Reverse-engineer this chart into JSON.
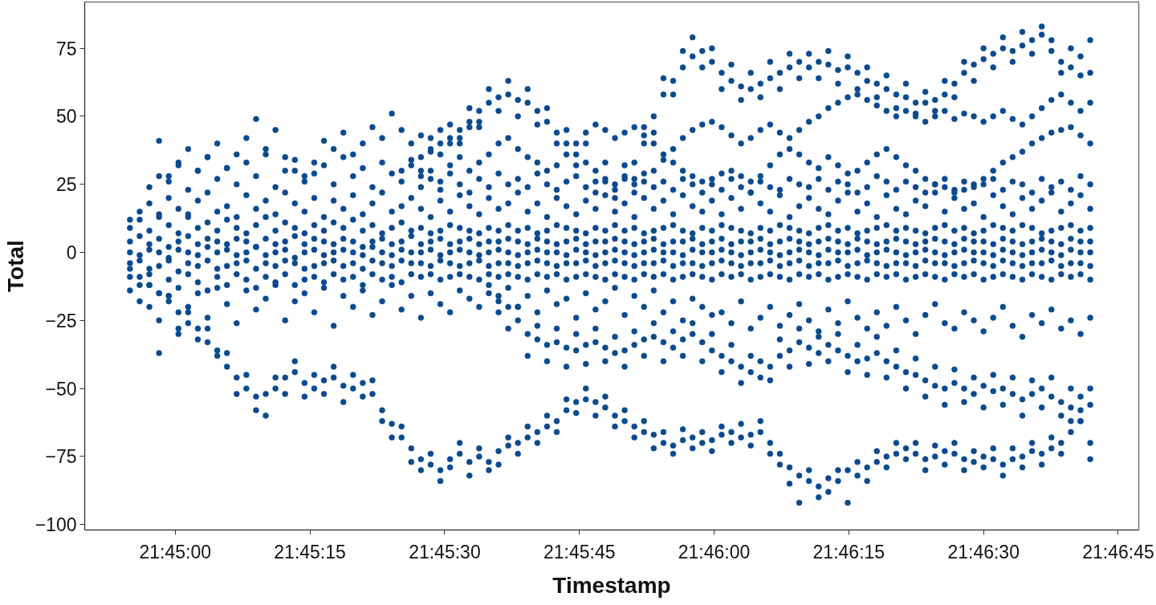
{
  "chart_data": {
    "type": "scatter",
    "xlabel": "Timestamp",
    "ylabel": "Total",
    "marker": "circle",
    "xlim": [
      21.7472,
      21.7798
    ],
    "ylim": [
      -102,
      92
    ],
    "xticks": [
      {
        "value": 21.75,
        "label": "21:45:00"
      },
      {
        "value": 21.7541667,
        "label": "21:45:15"
      },
      {
        "value": 21.7583333,
        "label": "21:45:30"
      },
      {
        "value": 21.7625,
        "label": "21:45:45"
      },
      {
        "value": 21.7666667,
        "label": "21:46:00"
      },
      {
        "value": 21.7708333,
        "label": "21:46:15"
      },
      {
        "value": 21.775,
        "label": "21:46:30"
      },
      {
        "value": 21.7791667,
        "label": "21:46:45"
      }
    ],
    "yticks": [
      -100,
      -75,
      -50,
      -25,
      0,
      25,
      50,
      75
    ],
    "x": [
      21.7486,
      21.7489,
      21.7492,
      21.7495,
      21.7498,
      21.7501,
      21.7504,
      21.7507,
      21.751,
      21.7513,
      21.7516,
      21.7519,
      21.7522,
      21.7525,
      21.7528,
      21.7531,
      21.7534,
      21.7537,
      21.754,
      21.7543,
      21.7546,
      21.7549,
      21.7552,
      21.7555,
      21.7558,
      21.7561,
      21.7564,
      21.7567,
      21.757,
      21.7573,
      21.7576,
      21.7579,
      21.7582,
      21.7585,
      21.7588,
      21.7591,
      21.7594,
      21.7597,
      21.76,
      21.7603,
      21.7606,
      21.7609,
      21.7612,
      21.7615,
      21.7618,
      21.7621,
      21.7624,
      21.7627,
      21.763,
      21.7633,
      21.7636,
      21.7639,
      21.7642,
      21.7645,
      21.7648,
      21.7651,
      21.7654,
      21.7657,
      21.766,
      21.7663,
      21.7666,
      21.7669,
      21.7672,
      21.7675,
      21.7678,
      21.7681,
      21.7684,
      21.7687,
      21.769,
      21.7693,
      21.7696,
      21.7699,
      21.7702,
      21.7705,
      21.7708,
      21.7711,
      21.7714,
      21.7717,
      21.772,
      21.7723,
      21.7726,
      21.7729,
      21.7732,
      21.7735,
      21.7738,
      21.7741,
      21.7744,
      21.7747,
      21.775,
      21.7753,
      21.7756,
      21.7759,
      21.7762,
      21.7765,
      21.7768,
      21.7771,
      21.7774,
      21.7777,
      21.778,
      21.7783
    ],
    "series": [
      {
        "color": "#0a4a8f",
        "values": [
          9,
          12,
          8,
          14,
          10,
          7,
          13,
          9,
          11,
          8,
          12,
          9,
          7,
          10,
          13,
          8,
          11,
          9,
          7,
          10,
          8,
          11,
          9,
          12,
          8,
          10,
          7,
          9,
          11,
          8,
          9,
          7,
          8,
          10,
          9,
          8,
          7,
          9,
          8,
          10,
          8,
          9,
          7,
          8,
          10,
          9,
          8,
          7,
          9,
          8,
          10,
          8,
          9,
          7,
          8,
          9,
          10,
          8,
          7,
          9,
          8,
          10,
          9,
          8,
          7,
          9,
          8,
          10,
          9,
          8,
          7,
          9,
          10,
          8,
          9,
          7,
          8,
          9,
          10,
          8,
          9,
          8,
          7,
          9,
          10,
          8,
          9,
          7,
          8,
          10,
          9,
          8,
          10,
          9,
          7,
          8,
          9,
          10,
          8,
          9
        ]
      },
      {
        "color": "#0a4a8f",
        "values": [
          4,
          6,
          3,
          5,
          2,
          4,
          6,
          3,
          5,
          4,
          3,
          5,
          4,
          2,
          5,
          3,
          4,
          6,
          3,
          5,
          4,
          3,
          5,
          4,
          2,
          4,
          5,
          3,
          4,
          6,
          3,
          4,
          5,
          3,
          4,
          5,
          3,
          4,
          4,
          5,
          4,
          3,
          5,
          4,
          3,
          4,
          5,
          3,
          4,
          4,
          5,
          4,
          3,
          4,
          5,
          3,
          4,
          4,
          5,
          3,
          4,
          5,
          3,
          4,
          4,
          5,
          3,
          4,
          5,
          4,
          3,
          4,
          5,
          4,
          3,
          5,
          4,
          3,
          4,
          5,
          4,
          3,
          4,
          5,
          4,
          3,
          5,
          4,
          4,
          3,
          5,
          4,
          3,
          4,
          5,
          4,
          3,
          5,
          4,
          4
        ]
      },
      {
        "color": "#0a4a8f",
        "values": [
          0,
          -1,
          1,
          0,
          -2,
          1,
          0,
          -1,
          2,
          0,
          1,
          -1,
          0,
          2,
          -1,
          0,
          1,
          -2,
          0,
          1,
          -1,
          0,
          1,
          0,
          -1,
          2,
          0,
          -1,
          1,
          0,
          0,
          1,
          -1,
          0,
          1,
          0,
          -1,
          0,
          1,
          0,
          -1,
          0,
          1,
          0,
          0,
          -1,
          1,
          0,
          -1,
          0,
          1,
          0,
          -1,
          0,
          1,
          0,
          0,
          -1,
          1,
          0,
          0,
          1,
          0,
          -1,
          0,
          1,
          0,
          -1,
          0,
          1,
          0,
          -1,
          1,
          0,
          0,
          1,
          -1,
          0,
          1,
          0,
          -1,
          0,
          1,
          0,
          -1,
          0,
          1,
          0,
          0,
          -1,
          1,
          0,
          -1,
          0,
          1,
          0,
          -1,
          1,
          0,
          0
        ]
      },
      {
        "color": "#0a4a8f",
        "values": [
          -4,
          -3,
          -6,
          -5,
          -3,
          -7,
          -4,
          -5,
          -3,
          -6,
          -5,
          -4,
          -3,
          -6,
          -4,
          -5,
          -3,
          -4,
          -6,
          -5,
          -4,
          -3,
          -5,
          -4,
          -6,
          -3,
          -4,
          -5,
          -3,
          -4,
          -4,
          -5,
          -3,
          -4,
          -5,
          -4,
          -3,
          -5,
          -4,
          -4,
          -5,
          -4,
          -3,
          -4,
          -5,
          -4,
          -4,
          -3,
          -5,
          -4,
          -3,
          -4,
          -5,
          -4,
          -4,
          -3,
          -5,
          -4,
          -4,
          -5,
          -4,
          -3,
          -4,
          -5,
          -4,
          -4,
          -3,
          -5,
          -4,
          -3,
          -5,
          -4,
          -4,
          -3,
          -5,
          -4,
          -3,
          -4,
          -5,
          -4,
          -4,
          -5,
          -3,
          -4,
          -4,
          -5,
          -4,
          -3,
          -4,
          -5,
          -3,
          -4,
          -5,
          -4,
          -4,
          -3,
          -5,
          -4,
          -4,
          -5
        ]
      },
      {
        "color": "#0a4a8f",
        "values": [
          -9,
          -12,
          -8,
          -15,
          -10,
          -13,
          -8,
          -11,
          -14,
          -9,
          -12,
          -8,
          -10,
          -13,
          -9,
          -11,
          -8,
          -12,
          -10,
          -9,
          -11,
          -8,
          -10,
          -9,
          -12,
          -8,
          -10,
          -9,
          -11,
          -8,
          -9,
          -8,
          -10,
          -9,
          -8,
          -9,
          -10,
          -8,
          -9,
          -8,
          -9,
          -10,
          -8,
          -9,
          -8,
          -10,
          -9,
          -8,
          -9,
          -10,
          -8,
          -9,
          -10,
          -8,
          -9,
          -8,
          -10,
          -9,
          -8,
          -9,
          -10,
          -8,
          -9,
          -8,
          -10,
          -9,
          -8,
          -9,
          -10,
          -8,
          -9,
          -8,
          -10,
          -9,
          -8,
          -9,
          -10,
          -8,
          -9,
          -8,
          -10,
          -9,
          -8,
          -9,
          -10,
          -8,
          -9,
          -8,
          -10,
          -9,
          -8,
          -9,
          -10,
          -8,
          -9,
          -10,
          -8,
          -9,
          -8,
          -10
        ]
      },
      {
        "color": "#0a4a8f",
        "values": [
          -6,
          -9,
          -12,
          -15,
          -18,
          -22,
          -26,
          -28,
          -33,
          -36,
          -42,
          -46,
          -50,
          -53,
          -52,
          -50,
          -46,
          -44,
          -48,
          -50,
          -47,
          -46,
          -49,
          -50,
          -48,
          -52,
          -58,
          -63,
          -68,
          -72,
          -76,
          -78,
          -80,
          -76,
          -74,
          -77,
          -75,
          -77,
          -73,
          -71,
          -70,
          -68,
          -66,
          -64,
          -62,
          -58,
          -55,
          -54,
          -55,
          -57,
          -60,
          -62,
          -64,
          -66,
          -67,
          -70,
          -71,
          -69,
          -68,
          -70,
          -69,
          -67,
          -66,
          -68,
          -67,
          -66,
          -70,
          -74,
          -79,
          -82,
          -84,
          -86,
          -83,
          -84,
          -80,
          -82,
          -79,
          -77,
          -75,
          -74,
          -72,
          -74,
          -76,
          -75,
          -73,
          -74,
          -76,
          -77,
          -75,
          -76,
          -78,
          -76,
          -75,
          -73,
          -74,
          -72,
          -70,
          -66,
          -62,
          -70
        ]
      },
      {
        "color": "#0a4a8f",
        "values": [
          null,
          null,
          -20,
          -25,
          -16,
          -30,
          -22,
          -32,
          -28,
          -38,
          -37,
          -52,
          -45,
          -58,
          -60,
          -46,
          -52,
          -40,
          -53,
          -45,
          -52,
          -42,
          -55,
          -45,
          -53,
          -47,
          -62,
          -68,
          -64,
          -77,
          -80,
          -74,
          -84,
          -79,
          -70,
          -82,
          -72,
          -80,
          -78,
          -68,
          -74,
          -64,
          -70,
          -60,
          -66,
          -54,
          -59,
          -50,
          -60,
          -53,
          -64,
          -58,
          -68,
          -62,
          -72,
          -66,
          -74,
          -65,
          -72,
          -66,
          -73,
          -64,
          -70,
          -63,
          -71,
          -62,
          -74,
          -78,
          -85,
          -92,
          -80,
          -90,
          -88,
          -80,
          -92,
          -77,
          -84,
          -73,
          -79,
          -70,
          -76,
          -70,
          -80,
          -71,
          -78,
          -70,
          -80,
          -73,
          -79,
          -72,
          -82,
          -72,
          -79,
          -70,
          -78,
          -68,
          -74,
          -62,
          -58,
          -76
        ]
      },
      {
        "color": "#0a4a8f",
        "values": [
          -14,
          -18,
          -12,
          -37,
          -16,
          -28,
          -20,
          -15,
          -24,
          -13,
          -19,
          -26,
          -14,
          -21,
          -17,
          -12,
          -25,
          -18,
          -15,
          -22,
          -13,
          -27,
          -16,
          -20,
          -14,
          -23,
          -18,
          -12,
          -21,
          -16,
          -24,
          -15,
          -19,
          -22,
          -14,
          -17,
          -20,
          -15,
          -18,
          -13,
          -20,
          -16,
          -22,
          -14,
          -19,
          -17,
          -24,
          -15,
          -21,
          -18,
          -13,
          -23,
          -16,
          -20,
          -14,
          -22,
          -18,
          -25,
          -17,
          -20,
          -23,
          -22,
          -26,
          -18,
          -28,
          -24,
          -20,
          -27,
          -23,
          -19,
          -25,
          -29,
          -21,
          -26,
          -18,
          -24,
          -28,
          -22,
          -27,
          -20,
          -25,
          -30,
          -23,
          -19,
          -26,
          -28,
          -22,
          -25,
          -29,
          -24,
          -20,
          -27,
          -31,
          -23,
          -26,
          -21,
          -28,
          -25,
          -30,
          -24
        ]
      },
      {
        "color": "#0a4a8f",
        "values": [
          null,
          null,
          null,
          null,
          null,
          null,
          null,
          null,
          null,
          null,
          null,
          null,
          null,
          null,
          null,
          null,
          null,
          null,
          null,
          null,
          null,
          null,
          null,
          null,
          null,
          null,
          null,
          null,
          null,
          null,
          null,
          null,
          null,
          null,
          null,
          null,
          null,
          -12,
          -16,
          -20,
          -25,
          -30,
          -32,
          -34,
          -33,
          -35,
          -36,
          -34,
          -33,
          -35,
          -37,
          -36,
          -34,
          -32,
          -31,
          -33,
          -35,
          -32,
          -30,
          -33,
          -36,
          -38,
          -40,
          -42,
          -44,
          -46,
          -42,
          -38,
          -36,
          -33,
          -35,
          -37,
          -34,
          -36,
          -38,
          -40,
          -39,
          -37,
          -40,
          -42,
          -44,
          -45,
          -47,
          -49,
          -50,
          -48,
          -50,
          -52,
          -49,
          -51,
          -50,
          -52,
          -54,
          -52,
          -50,
          -53,
          -55,
          -57,
          -53,
          -50
        ]
      },
      {
        "color": "#0a4a8f",
        "values": [
          null,
          null,
          null,
          null,
          null,
          null,
          null,
          null,
          null,
          null,
          null,
          null,
          null,
          null,
          null,
          null,
          null,
          null,
          null,
          null,
          null,
          null,
          null,
          null,
          null,
          null,
          null,
          null,
          null,
          null,
          null,
          null,
          null,
          null,
          null,
          null,
          null,
          null,
          -22,
          -28,
          -20,
          -38,
          -27,
          -40,
          -28,
          -42,
          -30,
          -41,
          -28,
          -40,
          -31,
          -42,
          -29,
          -38,
          -26,
          -40,
          -29,
          -38,
          -26,
          -40,
          -30,
          -44,
          -34,
          -48,
          -38,
          -40,
          -47,
          -32,
          -42,
          -28,
          -41,
          -31,
          -40,
          -30,
          -44,
          -34,
          -45,
          -31,
          -46,
          -36,
          -50,
          -39,
          -53,
          -42,
          -56,
          -43,
          -55,
          -46,
          -57,
          -45,
          -56,
          -46,
          -60,
          -47,
          -57,
          -46,
          -60,
          -50,
          -62,
          -56
        ]
      },
      {
        "color": "#0a4a8f",
        "values": [
          null,
          null,
          null,
          null,
          null,
          null,
          null,
          null,
          null,
          null,
          null,
          null,
          null,
          null,
          null,
          null,
          null,
          null,
          null,
          null,
          null,
          null,
          null,
          null,
          null,
          null,
          null,
          null,
          30,
          32,
          35,
          37,
          40,
          42,
          45,
          48,
          52,
          55,
          57,
          58,
          56,
          55,
          52,
          48,
          44,
          40,
          36,
          33,
          30,
          27,
          25,
          28,
          33,
          40,
          50,
          58,
          63,
          68,
          72,
          74,
          70,
          66,
          63,
          61,
          60,
          62,
          64,
          66,
          68,
          70,
          68,
          70,
          69,
          67,
          68,
          66,
          63,
          62,
          60,
          58,
          57,
          55,
          55,
          56,
          58,
          62,
          66,
          69,
          71,
          73,
          75,
          74,
          76,
          78,
          80,
          74,
          70,
          68,
          72,
          66
        ]
      },
      {
        "color": "#0a4a8f",
        "values": [
          null,
          null,
          null,
          null,
          null,
          null,
          null,
          null,
          null,
          null,
          null,
          null,
          null,
          null,
          null,
          null,
          null,
          null,
          null,
          null,
          null,
          null,
          null,
          null,
          null,
          null,
          null,
          null,
          null,
          null,
          30,
          42,
          36,
          47,
          40,
          53,
          46,
          60,
          52,
          63,
          50,
          60,
          47,
          53,
          40,
          45,
          32,
          40,
          26,
          33,
          20,
          32,
          27,
          46,
          44,
          64,
          58,
          74,
          79,
          68,
          75,
          60,
          69,
          56,
          66,
          57,
          70,
          60,
          73,
          64,
          73,
          64,
          74,
          62,
          72,
          60,
          68,
          57,
          65,
          53,
          62,
          51,
          59,
          52,
          63,
          57,
          70,
          63,
          75,
          68,
          79,
          70,
          81,
          73,
          83,
          78,
          66,
          75,
          65,
          78
        ]
      },
      {
        "color": "#0a4a8f",
        "values": [
          null,
          null,
          null,
          null,
          null,
          null,
          null,
          null,
          null,
          null,
          null,
          null,
          null,
          null,
          null,
          null,
          null,
          null,
          null,
          null,
          null,
          null,
          null,
          null,
          null,
          null,
          null,
          null,
          null,
          null,
          null,
          null,
          null,
          null,
          null,
          null,
          null,
          null,
          null,
          null,
          null,
          null,
          null,
          null,
          null,
          null,
          null,
          null,
          null,
          null,
          null,
          null,
          22,
          26,
          30,
          34,
          38,
          42,
          45,
          47,
          48,
          46,
          43,
          40,
          42,
          45,
          47,
          44,
          42,
          45,
          48,
          50,
          53,
          55,
          57,
          58,
          56,
          54,
          52,
          50,
          52,
          50,
          48,
          50,
          52,
          49,
          51,
          50,
          48,
          50,
          52,
          49,
          47,
          50,
          53,
          56,
          58,
          55,
          52,
          55
        ]
      },
      {
        "color": "#0a4a8f",
        "values": [
          null,
          null,
          null,
          null,
          null,
          null,
          null,
          null,
          null,
          null,
          null,
          null,
          null,
          null,
          null,
          null,
          null,
          null,
          null,
          null,
          null,
          null,
          null,
          null,
          null,
          null,
          null,
          null,
          null,
          null,
          28,
          30,
          26,
          32,
          35,
          30,
          33,
          36,
          40,
          42,
          38,
          35,
          33,
          30,
          32,
          36,
          40,
          44,
          47,
          45,
          42,
          44,
          46,
          43,
          40,
          36,
          33,
          30,
          28,
          26,
          27,
          29,
          30,
          28,
          26,
          28,
          32,
          36,
          38,
          36,
          33,
          31,
          35,
          32,
          29,
          30,
          33,
          36,
          38,
          35,
          32,
          30,
          27,
          25,
          24,
          22,
          23,
          25,
          27,
          30,
          33,
          35,
          37,
          40,
          42,
          44,
          45,
          46,
          43,
          40
        ]
      },
      {
        "color": "#0a4a8f",
        "values": [
          12,
          15,
          18,
          13,
          20,
          16,
          14,
          19,
          22,
          15,
          17,
          13,
          21,
          16,
          19,
          14,
          22,
          18,
          15,
          20,
          13,
          19,
          16,
          21,
          14,
          18,
          22,
          15,
          17,
          20,
          16,
          13,
          19,
          15,
          21,
          17,
          14,
          20,
          16,
          18,
          22,
          15,
          18,
          13,
          20,
          17,
          14,
          19,
          16,
          21,
          15,
          18,
          13,
          20,
          16,
          19,
          14,
          21,
          17,
          15,
          19,
          14,
          20,
          16,
          22,
          18,
          15,
          21,
          13,
          17,
          20,
          16,
          14,
          19,
          22,
          15,
          18,
          13,
          21,
          16,
          14,
          19,
          17,
          22,
          15,
          20,
          16,
          18,
          13,
          21,
          17,
          14,
          20,
          16,
          19,
          22,
          15,
          18,
          21,
          16
        ]
      },
      {
        "color": "#0a4a8f",
        "values": [
          null,
          null,
          24,
          28,
          26,
          32,
          23,
          30,
          35,
          27,
          31,
          25,
          33,
          28,
          36,
          24,
          30,
          34,
          26,
          29,
          32,
          25,
          35,
          28,
          31,
          24,
          33,
          29,
          26,
          34,
          24,
          27,
          23,
          29,
          25,
          22,
          27,
          24,
          29,
          25,
          27,
          24,
          29,
          25,
          23,
          26,
          28,
          24,
          22,
          26,
          23,
          27,
          25,
          29,
          24,
          26,
          23,
          27,
          25,
          22,
          25,
          23,
          27,
          24,
          22,
          26,
          24,
          23,
          27,
          25,
          24,
          27,
          23,
          26,
          25,
          22,
          24,
          28,
          26,
          23,
          26,
          24,
          22,
          25,
          27,
          23,
          26,
          24,
          25,
          27,
          23,
          26,
          25,
          22,
          27,
          24,
          26,
          23,
          28,
          25
        ]
      },
      {
        "color": "#0a4a8f",
        "values": [
          null,
          null,
          null,
          41,
          28,
          33,
          38,
          30,
          35,
          40,
          31,
          36,
          42,
          49,
          38,
          45,
          35,
          30,
          28,
          33,
          41,
          38,
          44,
          36,
          40,
          46,
          42,
          51,
          45,
          40,
          43,
          38,
          45,
          40,
          42,
          46,
          48,
          null,
          null,
          null,
          null,
          null,
          null,
          null,
          null,
          null,
          null,
          null,
          null,
          null,
          null,
          null,
          null,
          null,
          null,
          null,
          null,
          null,
          null,
          null,
          null,
          null,
          null,
          null,
          null,
          null,
          null,
          null,
          null,
          null,
          null,
          null,
          null,
          null,
          null,
          null,
          null,
          null,
          null,
          null,
          null,
          null,
          null,
          null,
          null,
          null,
          null,
          null,
          null,
          null,
          null,
          null,
          null,
          null,
          null,
          null,
          null,
          null,
          null,
          null
        ]
      }
    ]
  }
}
